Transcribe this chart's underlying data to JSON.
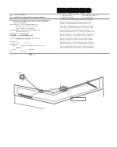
{
  "bg_color": "#ffffff",
  "barcode_color": "#111111",
  "text_color": "#222222",
  "line_color": "#444444",
  "diagram_color": "#444444",
  "header_bold_color": "#111111",
  "gray_text": "#555555"
}
